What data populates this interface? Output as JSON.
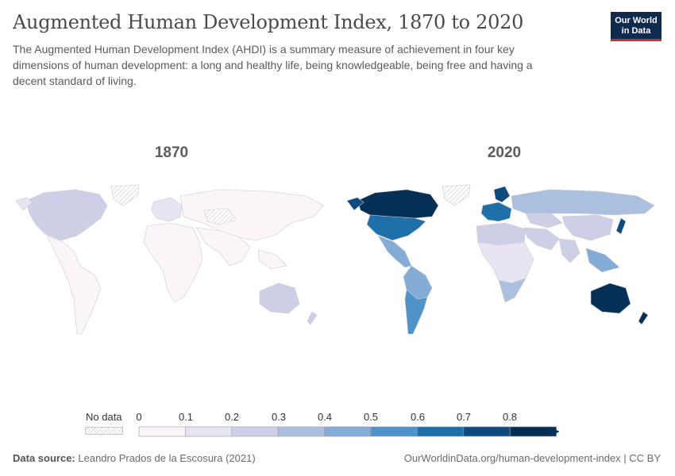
{
  "header": {
    "title": "Augmented Human Development Index, 1870 to 2020",
    "subtitle": "The Augmented Human Development Index (AHDI) is a summary measure of achievement in four key dimensions of human development: a long and healthy life, being knowledgeable, being free and having a decent standard of living."
  },
  "logo": {
    "line1": "Our World",
    "line2": "in Data",
    "bg_color": "#0f2a4f",
    "accent_color": "#d42b31"
  },
  "panels": [
    {
      "year_label": "1870"
    },
    {
      "year_label": "2020"
    }
  ],
  "legend": {
    "no_data_label": "No data",
    "ticks": [
      "0",
      "0.1",
      "0.2",
      "0.3",
      "0.4",
      "0.5",
      "0.6",
      "0.7",
      "0.8"
    ],
    "colors": [
      "#fbf4f8",
      "#e8e4f2",
      "#cdcfe6",
      "#abbfdf",
      "#84acd6",
      "#4f93c8",
      "#1f6fa9",
      "#0e4a7f",
      "#062f55"
    ]
  },
  "chart_data": {
    "type": "choropleth",
    "metric": "Augmented Human Development Index (AHDI)",
    "scale_bins": [
      0,
      0.1,
      0.2,
      0.3,
      0.4,
      0.5,
      0.6,
      0.7,
      0.8
    ],
    "maps": [
      {
        "year": "1870",
        "regions": [
          {
            "region": "North America",
            "bin": 2
          },
          {
            "region": "Greenland",
            "bin": null
          },
          {
            "region": "Latin America",
            "bin": 0
          },
          {
            "region": "South America (south)",
            "bin": 1
          },
          {
            "region": "Western Europe",
            "bin": 2
          },
          {
            "region": "Eastern Europe / Russia",
            "bin": 0
          },
          {
            "region": "Central Asia",
            "bin": null
          },
          {
            "region": "Africa",
            "bin": 0
          },
          {
            "region": "Middle East",
            "bin": 0
          },
          {
            "region": "South Asia",
            "bin": 0
          },
          {
            "region": "East Asia",
            "bin": 0
          },
          {
            "region": "Southeast Asia",
            "bin": 0
          },
          {
            "region": "Australia",
            "bin": 2
          },
          {
            "region": "New Zealand",
            "bin": 2
          }
        ]
      },
      {
        "year": "2020",
        "regions": [
          {
            "region": "North America",
            "bin": 8
          },
          {
            "region": "Greenland",
            "bin": null
          },
          {
            "region": "United States",
            "bin": 6
          },
          {
            "region": "Mexico",
            "bin": 4
          },
          {
            "region": "Central America",
            "bin": 3
          },
          {
            "region": "Northern South America",
            "bin": 4
          },
          {
            "region": "Brazil",
            "bin": 4
          },
          {
            "region": "Southern Cone",
            "bin": 5
          },
          {
            "region": "Western Europe",
            "bin": 6
          },
          {
            "region": "Scandinavia",
            "bin": 7
          },
          {
            "region": "Russia",
            "bin": 3
          },
          {
            "region": "Central Asia",
            "bin": 2
          },
          {
            "region": "Middle East",
            "bin": 2
          },
          {
            "region": "North Africa",
            "bin": 2
          },
          {
            "region": "Sub-Saharan Africa",
            "bin": 1
          },
          {
            "region": "Southern Africa",
            "bin": 3
          },
          {
            "region": "South Asia",
            "bin": 2
          },
          {
            "region": "China",
            "bin": 2
          },
          {
            "region": "Japan",
            "bin": 7
          },
          {
            "region": "Southeast Asia",
            "bin": 3
          },
          {
            "region": "Australia",
            "bin": 8
          },
          {
            "region": "New Zealand",
            "bin": 8
          }
        ]
      }
    ]
  },
  "footer": {
    "source_label": "Data source:",
    "source_text": "Leandro Prados de la Escosura (2021)",
    "url_text": "OurWorldinData.org/human-development-index | CC BY"
  }
}
